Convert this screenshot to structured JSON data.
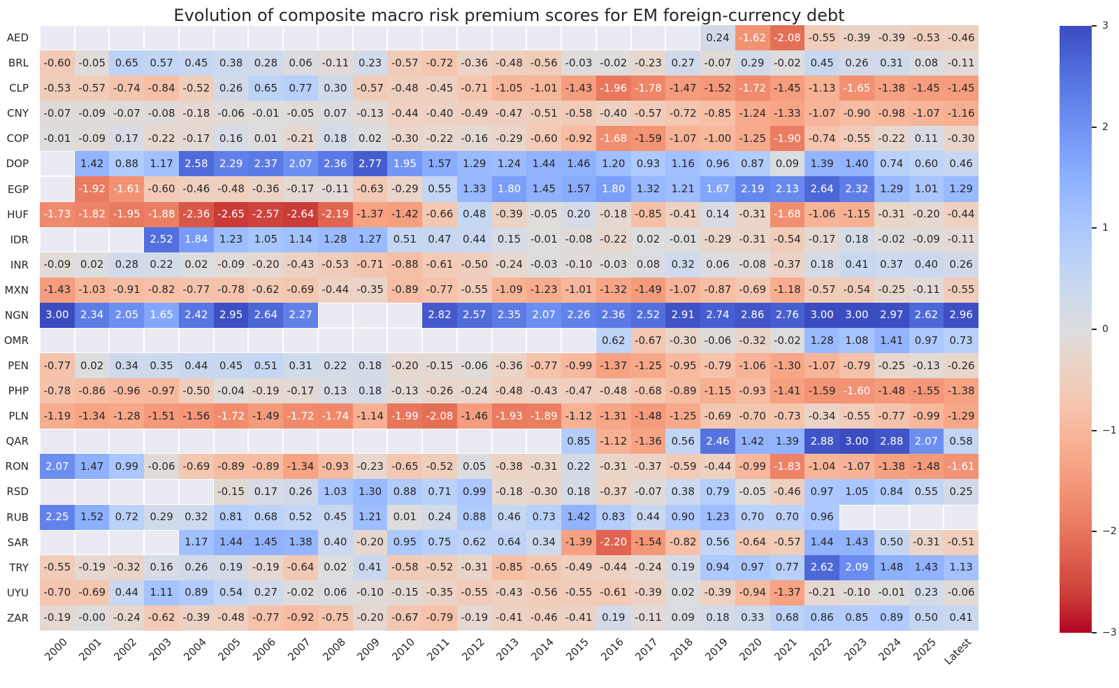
{
  "page": {
    "title": "Evolution of composite macro risk premium scores for EM foreign-currency debt"
  },
  "chart_data": {
    "type": "heatmap",
    "title": "Evolution of composite macro risk premium scores for EM foreign-currency debt",
    "x_tick_labels": [
      "2000",
      "2001",
      "2002",
      "2003",
      "2004",
      "2005",
      "2006",
      "2007",
      "2008",
      "2009",
      "2010",
      "2011",
      "2012",
      "2013",
      "2014",
      "2015",
      "2016",
      "2017",
      "2018",
      "2019",
      "2020",
      "2021",
      "2022",
      "2023",
      "2024",
      "2025",
      "Latest"
    ],
    "y_tick_labels": [
      "AED",
      "BRL",
      "CLP",
      "CNY",
      "COP",
      "DOP",
      "EGP",
      "HUF",
      "IDR",
      "INR",
      "MXN",
      "NGN",
      "OMR",
      "PEN",
      "PHP",
      "PLN",
      "QAR",
      "RON",
      "RSD",
      "RUB",
      "SAR",
      "TRY",
      "UYU",
      "ZAR"
    ],
    "cells": [
      [
        null,
        null,
        null,
        null,
        null,
        null,
        null,
        null,
        null,
        null,
        null,
        null,
        null,
        null,
        null,
        null,
        null,
        null,
        null,
        "0.24",
        "-1.62",
        "-2.08",
        "-0.55",
        "-0.39",
        "-0.39",
        "-0.53",
        "-0.46"
      ],
      [
        "-0.60",
        "-0.05",
        "0.65",
        "0.57",
        "0.45",
        "0.38",
        "0.28",
        "0.06",
        "-0.11",
        "0.23",
        "-0.57",
        "-0.72",
        "-0.36",
        "-0.48",
        "-0.56",
        "-0.03",
        "-0.02",
        "-0.23",
        "0.27",
        "-0.07",
        "0.29",
        "-0.02",
        "0.45",
        "0.26",
        "0.31",
        "0.08",
        "-0.11"
      ],
      [
        "-0.53",
        "-0.57",
        "-0.74",
        "-0.84",
        "-0.52",
        "0.26",
        "0.65",
        "0.77",
        "0.30",
        "-0.57",
        "-0.48",
        "-0.45",
        "-0.71",
        "-1.05",
        "-1.01",
        "-1.43",
        "-1.96",
        "-1.78",
        "-1.47",
        "-1.52",
        "-1.72",
        "-1.45",
        "-1.13",
        "-1.65",
        "-1.38",
        "-1.45",
        "-1.45"
      ],
      [
        "-0.07",
        "-0.09",
        "-0.07",
        "-0.08",
        "-0.18",
        "-0.06",
        "-0.01",
        "-0.05",
        "0.07",
        "-0.13",
        "-0.44",
        "-0.40",
        "-0.49",
        "-0.47",
        "-0.51",
        "-0.58",
        "-0.40",
        "-0.57",
        "-0.72",
        "-0.85",
        "-1.24",
        "-1.33",
        "-1.07",
        "-0.90",
        "-0.98",
        "-1.07",
        "-1.16"
      ],
      [
        "-0.01",
        "-0.09",
        "0.17",
        "-0.22",
        "-0.17",
        "0.16",
        "0.01",
        "-0.21",
        "0.18",
        "0.02",
        "-0.30",
        "-0.22",
        "-0.16",
        "-0.29",
        "-0.60",
        "-0.92",
        "-1.68",
        "-1.59",
        "-1.07",
        "-1.00",
        "-1.25",
        "-1.90",
        "-0.74",
        "-0.55",
        "-0.22",
        "0.11",
        "-0.30"
      ],
      [
        null,
        "1.42",
        "0.88",
        "1.17",
        "2.58",
        "2.29",
        "2.37",
        "2.07",
        "2.36",
        "2.77",
        "1.95",
        "1.57",
        "1.29",
        "1.24",
        "1.44",
        "1.46",
        "1.20",
        "0.93",
        "1.16",
        "0.96",
        "0.87",
        "0.09",
        "1.39",
        "1.40",
        "0.74",
        "0.60",
        "0.46"
      ],
      [
        null,
        "-1.92",
        "-1.61",
        "-0.60",
        "-0.46",
        "-0.48",
        "-0.36",
        "-0.17",
        "-0.11",
        "-0.63",
        "-0.29",
        "0.55",
        "1.33",
        "1.80",
        "1.45",
        "1.57",
        "1.80",
        "1.32",
        "1.21",
        "1.67",
        "2.19",
        "2.13",
        "2.64",
        "2.32",
        "1.29",
        "1.01",
        "1.29"
      ],
      [
        "-1.73",
        "-1.82",
        "-1.95",
        "-1.88",
        "-2.36",
        "-2.65",
        "-2.57",
        "-2.64",
        "-2.19",
        "-1.37",
        "-1.42",
        "-0.66",
        "0.48",
        "-0.39",
        "-0.05",
        "0.20",
        "-0.18",
        "-0.85",
        "-0.41",
        "0.14",
        "-0.31",
        "-1.68",
        "-1.06",
        "-1.15",
        "-0.31",
        "-0.20",
        "-0.44"
      ],
      [
        null,
        null,
        null,
        "2.52",
        "1.84",
        "1.23",
        "1.05",
        "1.14",
        "1.28",
        "1.27",
        "0.51",
        "0.47",
        "0.44",
        "0.15",
        "-0.01",
        "-0.08",
        "-0.22",
        "0.02",
        "-0.01",
        "-0.29",
        "-0.31",
        "-0.54",
        "-0.17",
        "0.18",
        "-0.02",
        "-0.09",
        "-0.11"
      ],
      [
        "-0.09",
        "0.02",
        "0.28",
        "0.22",
        "0.02",
        "-0.09",
        "-0.20",
        "-0.43",
        "-0.53",
        "-0.71",
        "-0.88",
        "-0.61",
        "-0.50",
        "-0.24",
        "-0.03",
        "-0.10",
        "-0.03",
        "0.08",
        "0.32",
        "0.06",
        "-0.08",
        "-0.37",
        "0.18",
        "0.41",
        "0.37",
        "0.40",
        "0.26"
      ],
      [
        "-1.43",
        "-1.03",
        "-0.91",
        "-0.82",
        "-0.77",
        "-0.78",
        "-0.62",
        "-0.69",
        "-0.44",
        "-0.35",
        "-0.89",
        "-0.77",
        "-0.55",
        "-1.09",
        "-1.23",
        "-1.01",
        "-1.32",
        "-1.49",
        "-1.07",
        "-0.87",
        "-0.69",
        "-1.18",
        "-0.57",
        "-0.54",
        "-0.25",
        "-0.11",
        "-0.55"
      ],
      [
        "3.00",
        "2.34",
        "2.05",
        "1.65",
        "2.42",
        "2.95",
        "2.64",
        "2.27",
        null,
        null,
        null,
        "2.82",
        "2.57",
        "2.35",
        "2.07",
        "2.26",
        "2.36",
        "2.52",
        "2.91",
        "2.74",
        "2.86",
        "2.76",
        "3.00",
        "3.00",
        "2.97",
        "2.62",
        "2.96"
      ],
      [
        null,
        null,
        null,
        null,
        null,
        null,
        null,
        null,
        null,
        null,
        null,
        null,
        null,
        null,
        null,
        null,
        "0.62",
        "-0.67",
        "-0.30",
        "-0.06",
        "-0.32",
        "-0.02",
        "1.28",
        "1.08",
        "1.41",
        "0.97",
        "0.73"
      ],
      [
        "-0.77",
        "0.02",
        "0.34",
        "0.35",
        "0.44",
        "0.45",
        "0.51",
        "0.31",
        "0.22",
        "0.18",
        "-0.20",
        "-0.15",
        "-0.06",
        "-0.36",
        "-0.77",
        "-0.99",
        "-1.37",
        "-1.25",
        "-0.95",
        "-0.79",
        "-1.06",
        "-1.30",
        "-1.07",
        "-0.79",
        "-0.25",
        "-0.13",
        "-0.26"
      ],
      [
        "-0.78",
        "-0.86",
        "-0.96",
        "-0.97",
        "-0.50",
        "-0.04",
        "-0.19",
        "-0.17",
        "0.13",
        "0.18",
        "-0.13",
        "-0.26",
        "-0.24",
        "-0.48",
        "-0.43",
        "-0.47",
        "-0.48",
        "-0.68",
        "-0.89",
        "-1.15",
        "-0.93",
        "-1.41",
        "-1.59",
        "-1.60",
        "-1.48",
        "-1.55",
        "-1.38"
      ],
      [
        "-1.19",
        "-1.34",
        "-1.28",
        "-1.51",
        "-1.56",
        "-1.72",
        "-1.49",
        "-1.72",
        "-1.74",
        "-1.14",
        "-1.99",
        "-2.08",
        "-1.46",
        "-1.93",
        "-1.89",
        "-1.12",
        "-1.31",
        "-1.48",
        "-1.25",
        "-0.69",
        "-0.70",
        "-0.73",
        "-0.34",
        "-0.55",
        "-0.77",
        "-0.99",
        "-1.29"
      ],
      [
        null,
        null,
        null,
        null,
        null,
        null,
        null,
        null,
        null,
        null,
        null,
        null,
        null,
        null,
        null,
        "0.85",
        "-1.12",
        "-1.36",
        "0.56",
        "2.46",
        "1.42",
        "1.39",
        "2.88",
        "3.00",
        "2.88",
        "2.07",
        "0.58"
      ],
      [
        "2.07",
        "1.47",
        "0.99",
        "-0.06",
        "-0.69",
        "-0.89",
        "-0.89",
        "-1.34",
        "-0.93",
        "-0.23",
        "-0.65",
        "-0.52",
        "0.05",
        "-0.38",
        "-0.31",
        "0.22",
        "-0.31",
        "-0.37",
        "-0.59",
        "-0.44",
        "-0.99",
        "-1.83",
        "-1.04",
        "-1.07",
        "-1.38",
        "-1.48",
        "-1.61"
      ],
      [
        null,
        null,
        null,
        null,
        null,
        "-0.15",
        "0.17",
        "0.26",
        "1.03",
        "1.30",
        "0.88",
        "0.71",
        "0.99",
        "-0.18",
        "-0.30",
        "0.18",
        "-0.37",
        "-0.07",
        "0.38",
        "0.79",
        "-0.05",
        "-0.46",
        "0.97",
        "1.05",
        "0.84",
        "0.55",
        "0.25"
      ],
      [
        "2.25",
        "1.52",
        "0.72",
        "0.29",
        "0.32",
        "0.81",
        "0.68",
        "0.52",
        "0.45",
        "1.21",
        "0.01",
        "0.24",
        "0.88",
        "0.46",
        "0.73",
        "1.42",
        "0.83",
        "0.44",
        "0.90",
        "1.23",
        "0.70",
        "0.70",
        "0.96",
        null,
        null,
        null,
        null
      ],
      [
        null,
        null,
        null,
        null,
        "1.17",
        "1.44",
        "1.45",
        "1.38",
        "0.40",
        "-0.20",
        "0.95",
        "0.75",
        "0.62",
        "0.64",
        "0.34",
        "-1.39",
        "-2.20",
        "-1.54",
        "-0.82",
        "0.56",
        "-0.64",
        "-0.57",
        "1.44",
        "1.43",
        "0.50",
        "-0.31",
        "-0.51"
      ],
      [
        "-0.55",
        "-0.19",
        "-0.32",
        "0.16",
        "0.26",
        "0.19",
        "-0.19",
        "-0.64",
        "0.02",
        "0.41",
        "-0.58",
        "-0.52",
        "-0.31",
        "-0.85",
        "-0.65",
        "-0.49",
        "-0.44",
        "-0.24",
        "0.19",
        "0.94",
        "0.97",
        "0.77",
        "2.62",
        "2.09",
        "1.48",
        "1.43",
        "1.13"
      ],
      [
        "-0.70",
        "-0.69",
        "0.44",
        "1.11",
        "0.89",
        "0.54",
        "0.27",
        "-0.02",
        "0.06",
        "-0.10",
        "-0.15",
        "-0.35",
        "-0.55",
        "-0.43",
        "-0.56",
        "-0.55",
        "-0.61",
        "-0.39",
        "0.02",
        "-0.39",
        "-0.94",
        "-1.37",
        "-0.21",
        "-0.10",
        "-0.01",
        "0.23",
        "-0.06"
      ],
      [
        "-0.19",
        "-0.00",
        "-0.24",
        "-0.62",
        "-0.39",
        "-0.48",
        "-0.77",
        "-0.92",
        "-0.75",
        "-0.20",
        "-0.67",
        "-0.79",
        "-0.19",
        "-0.41",
        "-0.46",
        "-0.41",
        "0.19",
        "-0.11",
        "0.09",
        "0.18",
        "0.33",
        "0.68",
        "0.86",
        "0.85",
        "0.89",
        "0.50",
        "0.41"
      ]
    ],
    "vmin": -3,
    "vmax": 3,
    "colormap": "coolwarm reversed (blue = +3, light gray = 0, red = -3)",
    "colorbar_tick_labels": [
      "3",
      "2",
      "1",
      "0",
      "−1",
      "−2",
      "−3"
    ],
    "colorbar_tick_values": [
      3,
      2,
      1,
      0,
      -1,
      -2,
      -3
    ],
    "annotation_format": "two decimals",
    "missing_cells": "blank (no annotation)",
    "colors": {
      "figure_background": "#ffffff",
      "nan_background": "#eaeaf2",
      "grid_line": "#ffffff",
      "dark_text": "#262626",
      "colorbar_top": "#3b4cc0",
      "colorbar_mid": "#dddddd",
      "colorbar_bottom": "#b40426"
    }
  }
}
